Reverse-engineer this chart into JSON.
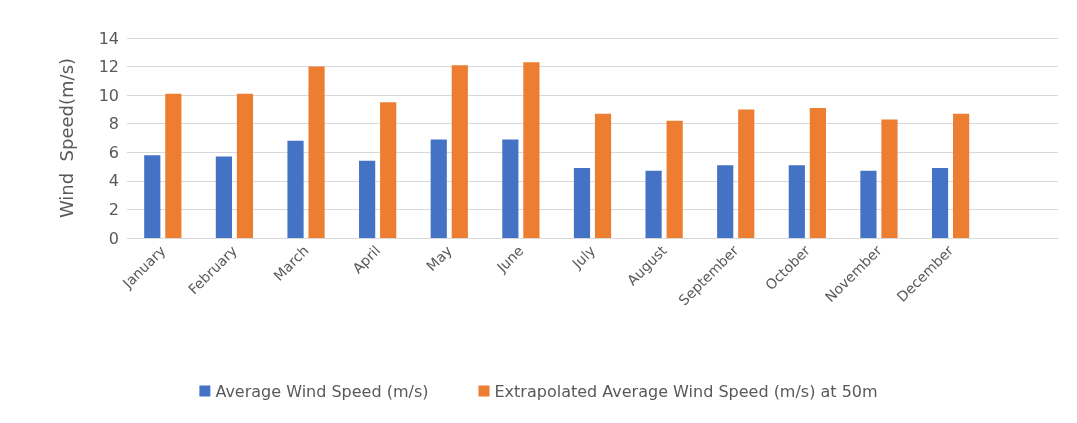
{
  "chart_data": {
    "type": "bar",
    "ylabel": "Wind  Speed(m/s)",
    "categories": [
      "January",
      "February",
      "March",
      "April",
      "May",
      "June",
      "July",
      "August",
      "September",
      "October",
      "November",
      "December",
      null
    ],
    "series": [
      {
        "name": "Average Wind Speed (m/s)",
        "color": "#4472c4",
        "values": [
          5.8,
          5.7,
          6.8,
          5.4,
          6.9,
          6.9,
          4.9,
          4.7,
          5.1,
          5.1,
          4.7,
          4.9,
          null
        ]
      },
      {
        "name": "Extrapolated Average Wind Speed (m/s) at 50m",
        "color": "#ed7d31",
        "values": [
          10.1,
          10.1,
          12.0,
          9.5,
          12.1,
          12.3,
          8.7,
          8.2,
          9.0,
          9.1,
          8.3,
          8.7,
          null
        ]
      }
    ],
    "ylim": [
      0,
      14
    ],
    "yticks": [
      0,
      2,
      4,
      6,
      8,
      10,
      12,
      14
    ],
    "grid": "y",
    "legend": "bottom"
  }
}
